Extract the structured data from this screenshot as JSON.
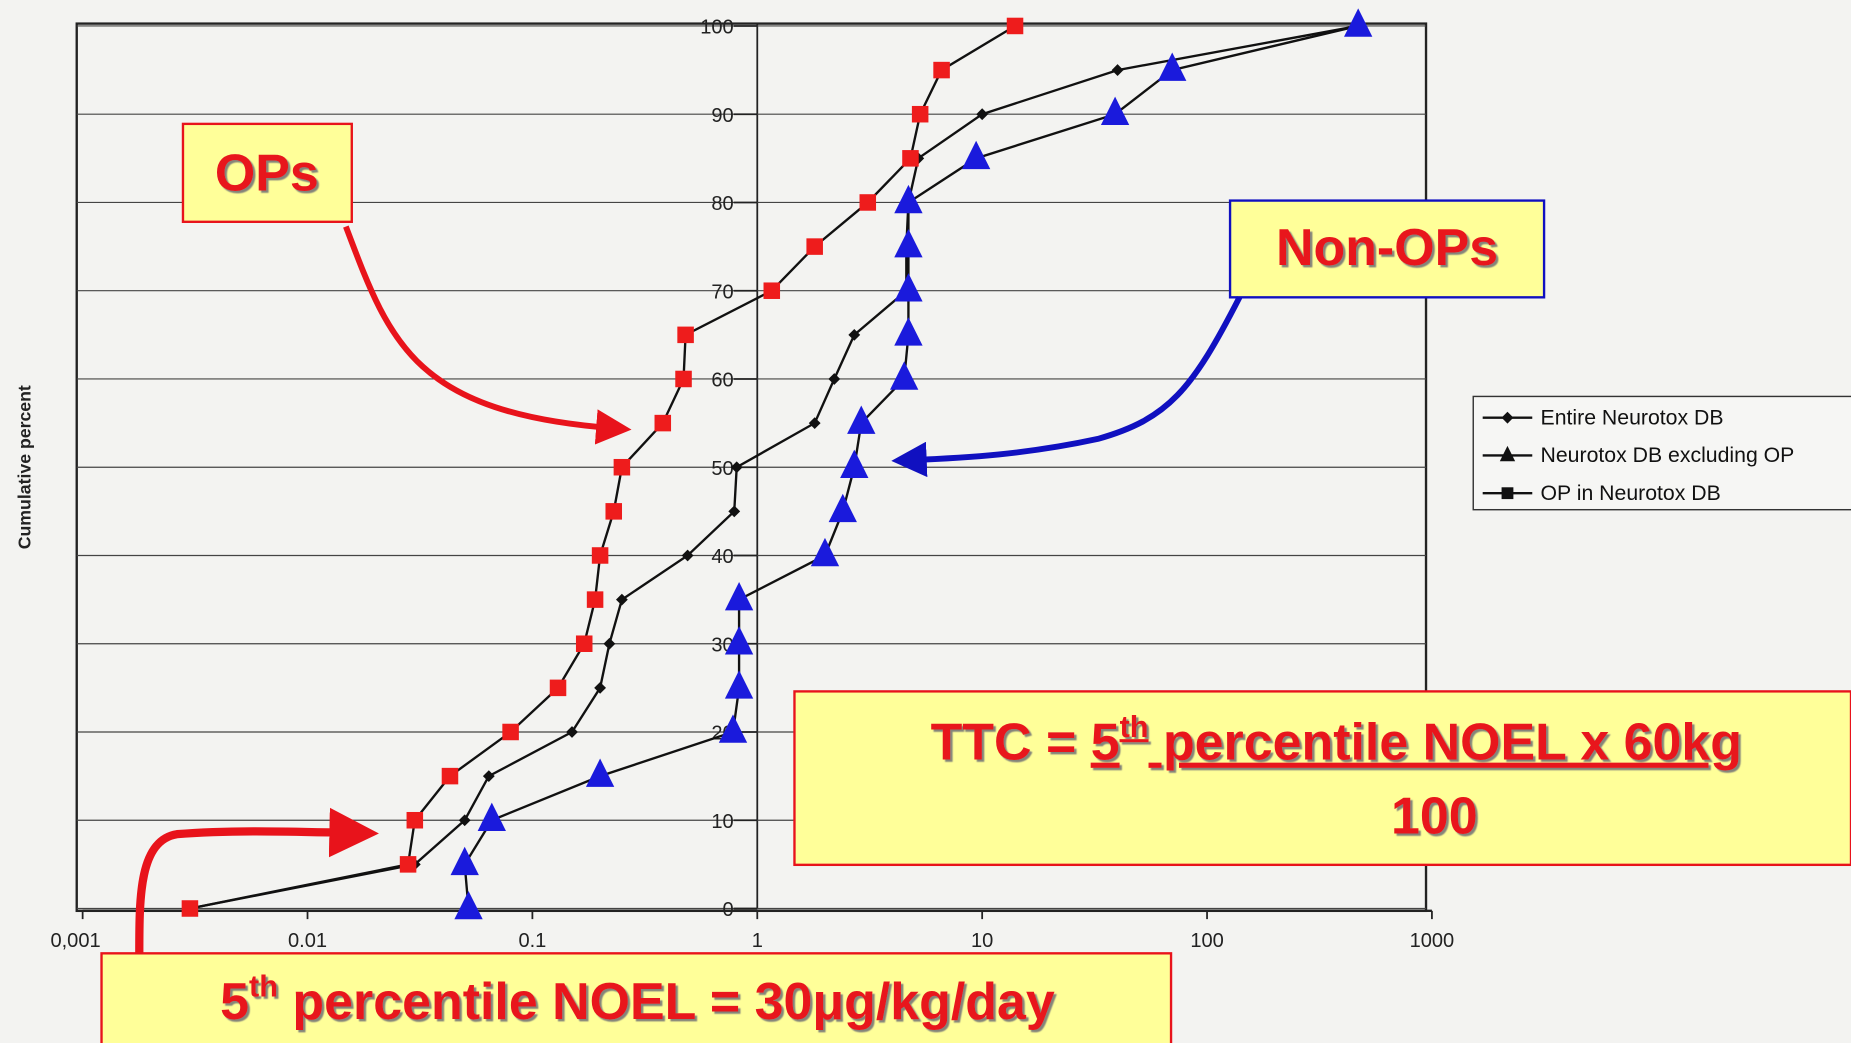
{
  "chart_data": {
    "type": "scatter-line",
    "y_label": "Cumulative percent",
    "xscale": "log",
    "xlim": [
      0.001,
      1000
    ],
    "xticks": [
      {
        "value": 0.001,
        "label": "0,001"
      },
      0.01,
      0.1,
      1,
      10,
      100,
      1000
    ],
    "ylim": [
      0,
      100
    ],
    "yticks": [
      0,
      10,
      20,
      30,
      40,
      50,
      60,
      70,
      80,
      90,
      100
    ],
    "grid": true,
    "line_color": "#111111",
    "legend": "right",
    "series": [
      {
        "name": "Entire Neurotox DB",
        "marker": "diamond",
        "color": "#111111",
        "x": [
          0.003,
          0.03,
          0.05,
          0.064,
          0.15,
          0.2,
          0.22,
          0.25,
          0.49,
          0.79,
          0.81,
          1.8,
          2.2,
          2.7,
          4.6,
          4.6,
          4.7,
          5.2,
          10,
          40,
          470
        ],
        "values": [
          0,
          5,
          10,
          15,
          20,
          25,
          30,
          35,
          40,
          45,
          50,
          55,
          60,
          65,
          70,
          75,
          80,
          85,
          90,
          95,
          100
        ]
      },
      {
        "name": "Neurotox DB excluding OP",
        "marker": "triangle",
        "color": "#1a1adc",
        "x": [
          0.052,
          0.05,
          0.066,
          0.2,
          0.78,
          0.83,
          0.83,
          0.83,
          2.0,
          2.4,
          2.7,
          2.9,
          4.5,
          4.7,
          4.7,
          4.7,
          4.7,
          9.4,
          39,
          70,
          470
        ],
        "values": [
          0,
          5,
          10,
          15,
          20,
          25,
          30,
          35,
          40,
          45,
          50,
          55,
          60,
          65,
          70,
          75,
          80,
          85,
          90,
          95,
          100
        ]
      },
      {
        "name": "OP in Neurotox DB",
        "marker": "square",
        "color": "#ee1c1c",
        "x": [
          0.003,
          0.028,
          0.03,
          0.043,
          0.08,
          0.13,
          0.17,
          0.19,
          0.2,
          0.23,
          0.25,
          0.38,
          0.47,
          0.48,
          1.16,
          1.8,
          3.1,
          4.8,
          5.3,
          6.6,
          14
        ],
        "values": [
          0,
          5,
          10,
          15,
          20,
          25,
          30,
          35,
          40,
          45,
          50,
          55,
          60,
          65,
          70,
          75,
          80,
          85,
          90,
          95,
          100
        ]
      }
    ],
    "annotations": {
      "ops": "OPs",
      "non_ops": "Non-OPs",
      "ttc": {
        "lead": "TTC = ",
        "ordinal": "5",
        "suffix": "th",
        "rest": " percentile NOEL x 60kg",
        "denominator": "100"
      },
      "noel": {
        "ordinal": "5",
        "suffix": "th",
        "rest": " percentile NOEL = 30μg/kg/day"
      }
    }
  }
}
